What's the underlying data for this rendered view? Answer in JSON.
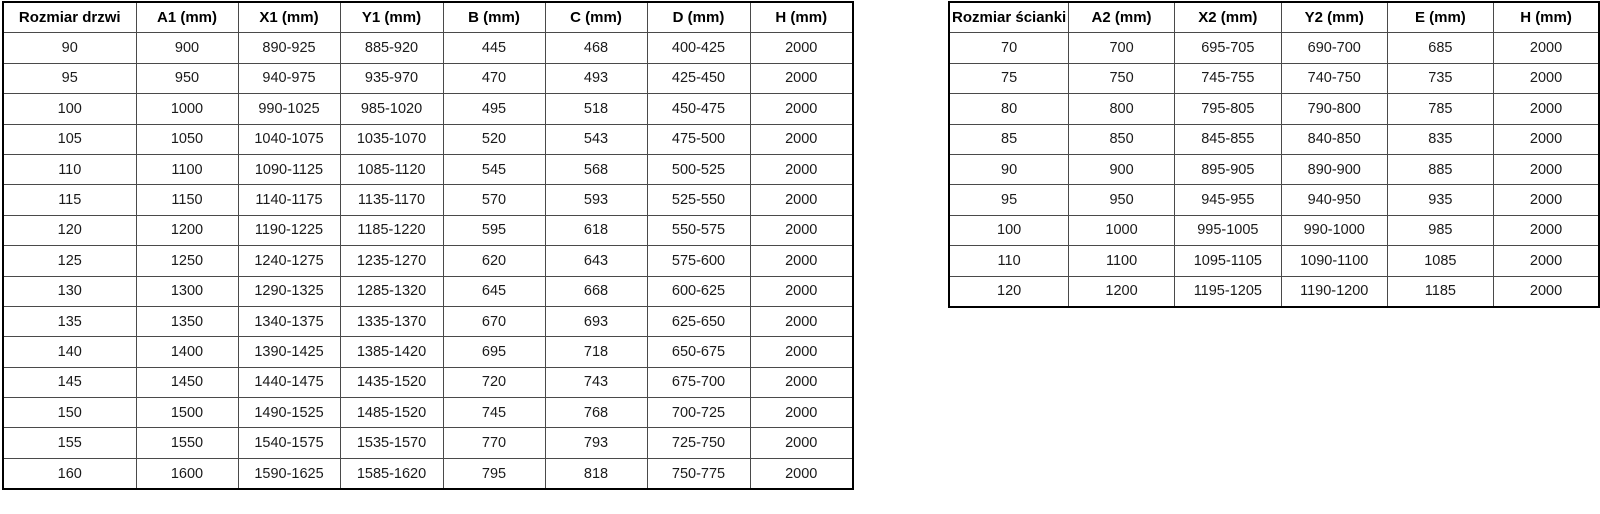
{
  "left_table": {
    "name": "door-sizes",
    "headers": [
      "Rozmiar drzwi",
      "A1 (mm)",
      "X1 (mm)",
      "Y1 (mm)",
      "B (mm)",
      "C (mm)",
      "D (mm)",
      "H (mm)"
    ],
    "rows": [
      [
        "90",
        "900",
        "890-925",
        "885-920",
        "445",
        "468",
        "400-425",
        "2000"
      ],
      [
        "95",
        "950",
        "940-975",
        "935-970",
        "470",
        "493",
        "425-450",
        "2000"
      ],
      [
        "100",
        "1000",
        "990-1025",
        "985-1020",
        "495",
        "518",
        "450-475",
        "2000"
      ],
      [
        "105",
        "1050",
        "1040-1075",
        "1035-1070",
        "520",
        "543",
        "475-500",
        "2000"
      ],
      [
        "110",
        "1100",
        "1090-1125",
        "1085-1120",
        "545",
        "568",
        "500-525",
        "2000"
      ],
      [
        "115",
        "1150",
        "1140-1175",
        "1135-1170",
        "570",
        "593",
        "525-550",
        "2000"
      ],
      [
        "120",
        "1200",
        "1190-1225",
        "1185-1220",
        "595",
        "618",
        "550-575",
        "2000"
      ],
      [
        "125",
        "1250",
        "1240-1275",
        "1235-1270",
        "620",
        "643",
        "575-600",
        "2000"
      ],
      [
        "130",
        "1300",
        "1290-1325",
        "1285-1320",
        "645",
        "668",
        "600-625",
        "2000"
      ],
      [
        "135",
        "1350",
        "1340-1375",
        "1335-1370",
        "670",
        "693",
        "625-650",
        "2000"
      ],
      [
        "140",
        "1400",
        "1390-1425",
        "1385-1420",
        "695",
        "718",
        "650-675",
        "2000"
      ],
      [
        "145",
        "1450",
        "1440-1475",
        "1435-1520",
        "720",
        "743",
        "675-700",
        "2000"
      ],
      [
        "150",
        "1500",
        "1490-1525",
        "1485-1520",
        "745",
        "768",
        "700-725",
        "2000"
      ],
      [
        "155",
        "1550",
        "1540-1575",
        "1535-1570",
        "770",
        "793",
        "725-750",
        "2000"
      ],
      [
        "160",
        "1600",
        "1590-1625",
        "1585-1620",
        "795",
        "818",
        "750-775",
        "2000"
      ]
    ]
  },
  "right_table": {
    "name": "wall-panel-sizes",
    "headers": [
      "Rozmiar ścianki",
      "A2 (mm)",
      "X2 (mm)",
      "Y2 (mm)",
      "E (mm)",
      "H (mm)"
    ],
    "rows": [
      [
        "70",
        "700",
        "695-705",
        "690-700",
        "685",
        "2000"
      ],
      [
        "75",
        "750",
        "745-755",
        "740-750",
        "735",
        "2000"
      ],
      [
        "80",
        "800",
        "795-805",
        "790-800",
        "785",
        "2000"
      ],
      [
        "85",
        "850",
        "845-855",
        "840-850",
        "835",
        "2000"
      ],
      [
        "90",
        "900",
        "895-905",
        "890-900",
        "885",
        "2000"
      ],
      [
        "95",
        "950",
        "945-955",
        "940-950",
        "935",
        "2000"
      ],
      [
        "100",
        "1000",
        "995-1005",
        "990-1000",
        "985",
        "2000"
      ],
      [
        "110",
        "1100",
        "1095-1105",
        "1090-1100",
        "1085",
        "2000"
      ],
      [
        "120",
        "1200",
        "1195-1205",
        "1190-1200",
        "1185",
        "2000"
      ]
    ]
  }
}
